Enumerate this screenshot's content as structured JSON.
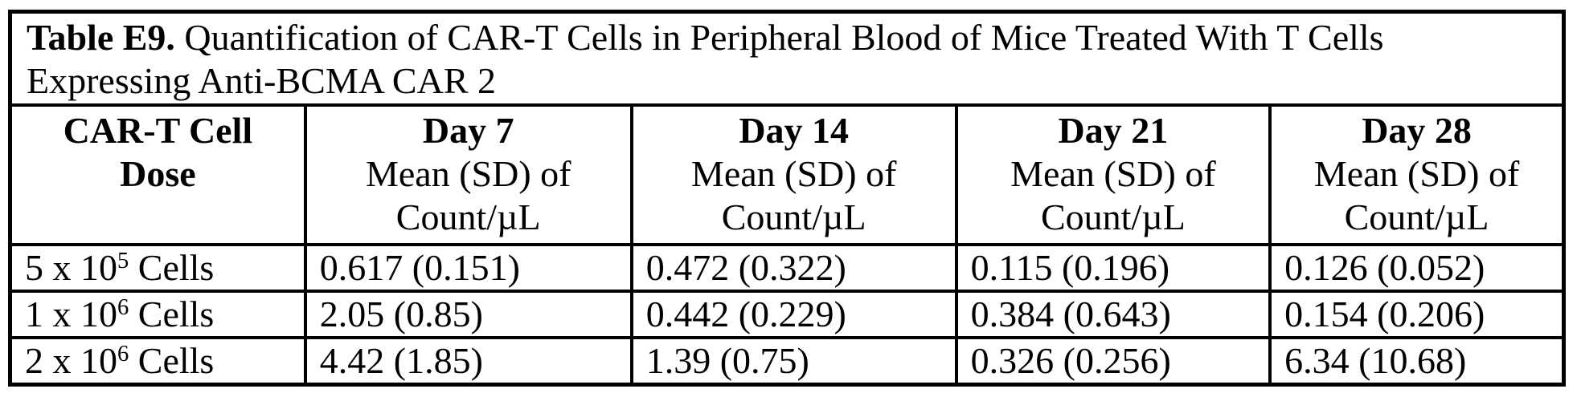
{
  "table": {
    "title_label": "Table E9.",
    "title_text": "Quantification of CAR-T Cells in Peripheral Blood of Mice Treated With T Cells Expressing Anti-BCMA CAR 2",
    "columns": {
      "dose": {
        "line1": "CAR-T Cell",
        "line2": "Dose"
      },
      "days": [
        {
          "label": "Day 7",
          "sub1": "Mean (SD) of",
          "sub2": "Count/µL"
        },
        {
          "label": "Day 14",
          "sub1": "Mean (SD) of",
          "sub2": "Count/µL"
        },
        {
          "label": "Day 21",
          "sub1": "Mean (SD) of",
          "sub2": "Count/µL"
        },
        {
          "label": "Day 28",
          "sub1": "Mean (SD) of",
          "sub2": "Count/µL"
        }
      ]
    },
    "rows": [
      {
        "dose_base": "5 x 10",
        "dose_exp": "5",
        "dose_suffix": "Cells",
        "day7": "0.617 (0.151)",
        "day14": "0.472 (0.322)",
        "day21": "0.115 (0.196)",
        "day28": "0.126 (0.052)"
      },
      {
        "dose_base": "1 x 10",
        "dose_exp": "6",
        "dose_suffix": "Cells",
        "day7": "2.05 (0.85)",
        "day14": "0.442 (0.229)",
        "day21": "0.384 (0.643)",
        "day28": "0.154 (0.206)"
      },
      {
        "dose_base": "2 x 10",
        "dose_exp": "6",
        "dose_suffix": "Cells",
        "day7": "4.42 (1.85)",
        "day14": "1.39 (0.75)",
        "day21": "0.326 (0.256)",
        "day28": "6.34 (10.68)"
      }
    ],
    "colors": {
      "ink": "#000000",
      "paper": "#ffffff"
    }
  }
}
